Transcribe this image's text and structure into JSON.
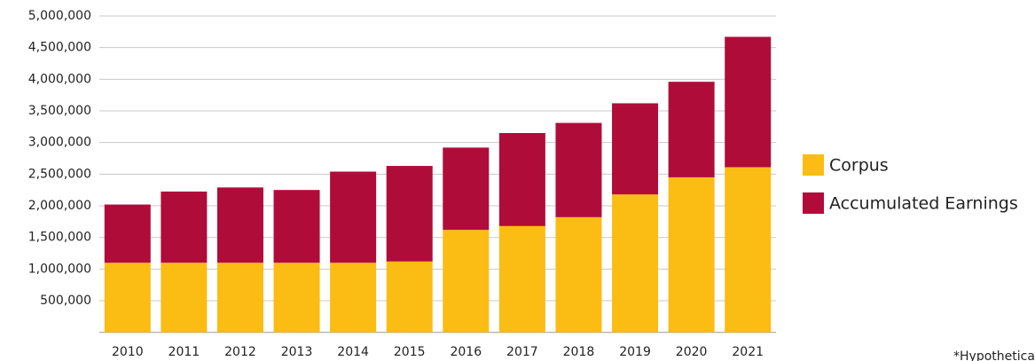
{
  "chart_data": {
    "type": "stacked_bar",
    "categories": [
      "2010",
      "2011",
      "2012",
      "2013",
      "2014",
      "2015",
      "2016",
      "2017",
      "2018",
      "2019",
      "2020",
      "2021"
    ],
    "series": [
      {
        "name": "Corpus",
        "color": "#fbbc13",
        "values": [
          1100000,
          1100000,
          1100000,
          1100000,
          1100000,
          1120000,
          1620000,
          1680000,
          1820000,
          2180000,
          2450000,
          2610000
        ]
      },
      {
        "name": "Accumulated Earnings",
        "color": "#b00c3a",
        "values": [
          920000,
          1125000,
          1190000,
          1150000,
          1440000,
          1510000,
          1300000,
          1470000,
          1490000,
          1440000,
          1510000,
          2060000
        ]
      }
    ],
    "ylim": [
      0,
      5000000
    ],
    "yticks": [
      {
        "value": 500000,
        "label": "500,000"
      },
      {
        "value": 1000000,
        "label": "1,000,000"
      },
      {
        "value": 1500000,
        "label": "1,500,000"
      },
      {
        "value": 2000000,
        "label": "2,000,000"
      },
      {
        "value": 2500000,
        "label": "2,500,000"
      },
      {
        "value": 3000000,
        "label": "3,000,000"
      },
      {
        "value": 3500000,
        "label": "3,500,000"
      },
      {
        "value": 4000000,
        "label": "4,000,000"
      },
      {
        "value": 4500000,
        "label": "4,500,000"
      },
      {
        "value": 5000000,
        "label": "5,000,000"
      }
    ],
    "grid": true,
    "legend": "right",
    "note": "*Hypothetical"
  }
}
